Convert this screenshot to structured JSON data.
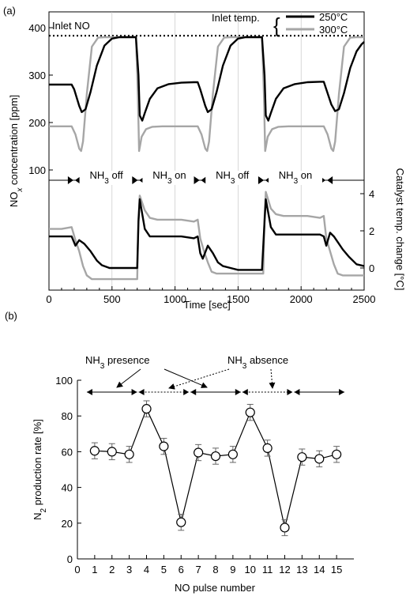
{
  "panel_a_label": "(a)",
  "panel_b_label": "(b)",
  "chart_data": [
    {
      "type": "line",
      "panel": "(a) top",
      "xlabel": "Time  [sec]",
      "ylabel_main": "NO",
      "ylabel_sub": "x",
      "ylabel_rest": " concentration [ppm]",
      "xlim": [
        0,
        2500
      ],
      "ylim": [
        100,
        400
      ],
      "x_ticks": [
        0,
        500,
        1000,
        1500,
        2000,
        2500
      ],
      "y_ticks": [
        100,
        200,
        300,
        400
      ],
      "reference_line": {
        "label": "Inlet NO",
        "y": 383
      },
      "legend_title": "Inlet temp.",
      "legend_position": "top-right",
      "series": [
        {
          "name": "250°C",
          "color": "#000000",
          "x": [
            0,
            180,
            200,
            240,
            260,
            290,
            330,
            380,
            440,
            500,
            560,
            620,
            690,
            710,
            720,
            740,
            760,
            800,
            860,
            950,
            1050,
            1150,
            1180,
            1200,
            1240,
            1260,
            1290,
            1330,
            1380,
            1440,
            1500,
            1560,
            1620,
            1690,
            1710,
            1720,
            1740,
            1760,
            1800,
            1860,
            1950,
            2050,
            2150,
            2180,
            2200,
            2240,
            2270,
            2300,
            2340,
            2390,
            2440,
            2480,
            2500
          ],
          "y": [
            280,
            280,
            270,
            235,
            222,
            228,
            265,
            320,
            362,
            377,
            380,
            380,
            380,
            300,
            215,
            204,
            220,
            250,
            272,
            281,
            284,
            285,
            285,
            270,
            235,
            222,
            228,
            265,
            320,
            362,
            377,
            380,
            380,
            380,
            300,
            215,
            204,
            220,
            250,
            272,
            281,
            285,
            286,
            286,
            270,
            238,
            224,
            228,
            262,
            315,
            350,
            365,
            370
          ]
        },
        {
          "name": "300°C",
          "color": "#a6a6a6",
          "x": [
            0,
            180,
            210,
            240,
            255,
            270,
            300,
            340,
            390,
            440,
            500,
            690,
            705,
            715,
            735,
            770,
            820,
            900,
            1150,
            1180,
            1210,
            1240,
            1255,
            1270,
            1300,
            1340,
            1390,
            1440,
            1500,
            1690,
            1705,
            1715,
            1735,
            1770,
            1820,
            1900,
            2150,
            2180,
            2210,
            2240,
            2255,
            2270,
            2300,
            2340,
            2390,
            2440,
            2500
          ],
          "y": [
            192,
            192,
            175,
            145,
            140,
            160,
            260,
            360,
            379,
            380,
            380,
            380,
            260,
            140,
            170,
            186,
            191,
            192,
            192,
            192,
            175,
            145,
            140,
            160,
            260,
            360,
            379,
            380,
            380,
            380,
            260,
            140,
            170,
            186,
            191,
            192,
            192,
            192,
            175,
            145,
            140,
            160,
            260,
            360,
            379,
            380,
            380
          ]
        }
      ],
      "phase_labels": [
        {
          "text": "NH",
          "sub": "3",
          "rest": " off",
          "x_from": 200,
          "x_to": 710
        },
        {
          "text": "NH",
          "sub": "3",
          "rest": " on",
          "x_from": 710,
          "x_to": 1200
        },
        {
          "text": "NH",
          "sub": "3",
          "rest": " off",
          "x_from": 1200,
          "x_to": 1710
        },
        {
          "text": "NH",
          "sub": "3",
          "rest": " on",
          "x_from": 1710,
          "x_to": 2200
        }
      ]
    },
    {
      "type": "line",
      "panel": "(a) bottom",
      "ylabel": "Catalyst temp. change  [°C]",
      "ylim": [
        -1.5,
        5
      ],
      "y_ticks": [
        0,
        2,
        4
      ],
      "series": [
        {
          "name": "250°C",
          "color": "#000000",
          "x": [
            0,
            100,
            180,
            210,
            240,
            280,
            330,
            380,
            420,
            480,
            560,
            640,
            700,
            710,
            720,
            760,
            800,
            860,
            950,
            1050,
            1150,
            1180,
            1200,
            1220,
            1260,
            1300,
            1340,
            1380,
            1440,
            1500,
            1560,
            1620,
            1690,
            1710,
            1720,
            1760,
            1800,
            1860,
            1950,
            2050,
            2150,
            2180,
            2200,
            2230,
            2260,
            2290,
            2330,
            2380,
            2440,
            2500
          ],
          "y": [
            1.7,
            1.7,
            1.7,
            1.2,
            1.5,
            1.3,
            0.9,
            0.4,
            0.15,
            0,
            0,
            0,
            0,
            2.5,
            3.7,
            2.1,
            1.7,
            1.7,
            1.7,
            1.7,
            1.6,
            1.7,
            0.8,
            0.5,
            1.2,
            0.8,
            0.3,
            0.1,
            0,
            -0.1,
            -0.1,
            -0.1,
            -0.1,
            2.5,
            3.7,
            2.2,
            1.8,
            1.8,
            1.8,
            1.8,
            1.8,
            1.7,
            1.2,
            1.9,
            1.7,
            1.4,
            1.0,
            0.6,
            0.2,
            0.1
          ]
        },
        {
          "name": "300°C",
          "color": "#a6a6a6",
          "x": [
            0,
            100,
            180,
            210,
            240,
            270,
            300,
            340,
            400,
            500,
            600,
            700,
            710,
            720,
            760,
            800,
            860,
            950,
            1050,
            1150,
            1180,
            1200,
            1230,
            1260,
            1290,
            1330,
            1380,
            1440,
            1500,
            1600,
            1700,
            1710,
            1720,
            1760,
            1800,
            1860,
            1950,
            2050,
            2150,
            2180,
            2200,
            2230,
            2260,
            2290,
            2330,
            2380,
            2440,
            2500
          ],
          "y": [
            2.1,
            2.1,
            2.2,
            1.5,
            0.9,
            0.1,
            -0.4,
            -0.6,
            -0.6,
            -0.6,
            -0.6,
            -0.6,
            2.6,
            3.9,
            3.1,
            2.7,
            2.6,
            2.6,
            2.6,
            2.5,
            2.6,
            1.6,
            0.9,
            0.3,
            -0.2,
            -0.3,
            -0.3,
            -0.3,
            -0.3,
            -0.3,
            -0.3,
            2.7,
            4.1,
            3.2,
            2.9,
            2.8,
            2.8,
            2.8,
            2.7,
            2.8,
            1.6,
            0.9,
            0.2,
            -0.3,
            -0.4,
            -0.4,
            -0.4,
            -0.4
          ]
        }
      ]
    },
    {
      "type": "line",
      "panel": "(b)",
      "xlabel": "NO pulse number",
      "ylabel_pre": "N",
      "ylabel_sub": "2",
      "ylabel_rest": " production rate [%]",
      "xlim": [
        0,
        16
      ],
      "ylim": [
        0,
        100
      ],
      "x_ticks": [
        0,
        1,
        2,
        3,
        4,
        5,
        6,
        7,
        8,
        9,
        10,
        11,
        12,
        13,
        14,
        15
      ],
      "y_ticks": [
        0,
        20,
        40,
        60,
        80,
        100
      ],
      "x": [
        1,
        2,
        3,
        4,
        5,
        6,
        7,
        8,
        9,
        10,
        11,
        12,
        13,
        14,
        15
      ],
      "values": [
        60.5,
        60,
        58.5,
        84,
        63,
        20.5,
        59.5,
        57.5,
        58.5,
        82,
        62,
        17.5,
        57,
        56,
        58.5
      ],
      "errors": [
        4.5,
        4.5,
        4.5,
        4.5,
        4.5,
        4.5,
        4.5,
        4.5,
        4.5,
        4.5,
        4.5,
        4.5,
        4.5,
        4.5,
        4.5
      ],
      "annotations": [
        {
          "text": "NH",
          "sub": "3",
          "rest": " presence"
        },
        {
          "text": "NH",
          "sub": "3",
          "rest": " absence"
        }
      ],
      "segments": [
        {
          "x_from": 0.5,
          "x_to": 3.5,
          "style": "solid"
        },
        {
          "x_from": 3.5,
          "x_to": 6.5,
          "style": "dotted"
        },
        {
          "x_from": 6.5,
          "x_to": 9.5,
          "style": "solid"
        },
        {
          "x_from": 9.5,
          "x_to": 12.5,
          "style": "dotted"
        },
        {
          "x_from": 12.5,
          "x_to": 15.5,
          "style": "solid"
        }
      ]
    }
  ]
}
